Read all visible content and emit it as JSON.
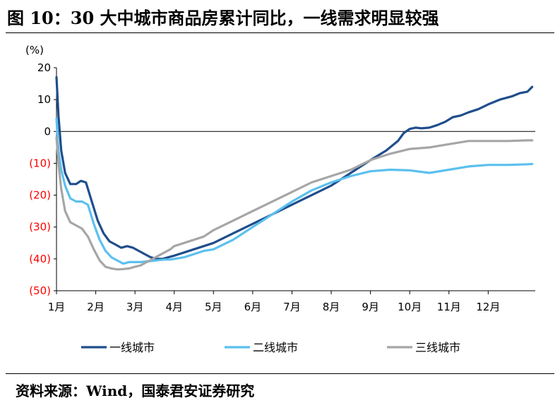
{
  "title": "图 10：30 大中城市商品房累计同比，一线需求明显较强",
  "source": "资料来源：Wind，国泰君安证券研究",
  "chart_data": {
    "type": "line",
    "title": "图 10：30 大中城市商品房累计同比，一线需求明显较强",
    "yunit": "(%)",
    "ylim": [
      -50,
      20
    ],
    "yticks": [
      20,
      10,
      0,
      -10,
      -20,
      -30,
      -40,
      -50
    ],
    "ytick_labels": [
      "20",
      "10",
      "0",
      "(10)",
      "(20)",
      "(30)",
      "(40)",
      "(50)"
    ],
    "ytick_colors": [
      "#000000",
      "#000000",
      "#000000",
      "#ff0000",
      "#ff0000",
      "#ff0000",
      "#ff0000",
      "#ff0000"
    ],
    "xlim": [
      0,
      12.2
    ],
    "x_tick_labels": [
      "1月",
      "2月",
      "3月",
      "4月",
      "5月",
      "6月",
      "7月",
      "8月",
      "9月",
      "10月",
      "11月",
      "12月"
    ],
    "grid": false,
    "legend_position": "bottom",
    "series": [
      {
        "name": "一线城市",
        "color": "#1f4e8c",
        "x": [
          0,
          0.05,
          0.12,
          0.22,
          0.35,
          0.5,
          0.62,
          0.75,
          0.9,
          1.05,
          1.2,
          1.35,
          1.5,
          1.65,
          1.8,
          1.95,
          2.1,
          2.25,
          2.4,
          2.55,
          2.7,
          2.85,
          3.0,
          3.25,
          3.5,
          3.75,
          4.0,
          4.5,
          5.0,
          5.5,
          6.0,
          6.5,
          7.0,
          7.5,
          8.0,
          8.4,
          8.7,
          8.85,
          9.0,
          9.15,
          9.3,
          9.5,
          9.7,
          9.9,
          10.1,
          10.3,
          10.5,
          10.75,
          11.0,
          11.3,
          11.6,
          11.8,
          12.0,
          12.12
        ],
        "y": [
          17,
          5,
          -6,
          -13,
          -16.5,
          -16.5,
          -15.5,
          -16,
          -22,
          -28,
          -32,
          -34.5,
          -35.5,
          -36.5,
          -36,
          -36.5,
          -37.5,
          -38.5,
          -39.5,
          -40,
          -40,
          -39.5,
          -39,
          -38,
          -37,
          -36,
          -35,
          -32,
          -29,
          -26,
          -23,
          -20,
          -17,
          -13,
          -9,
          -6,
          -3,
          -0.5,
          0.8,
          1.2,
          1,
          1.2,
          2,
          3,
          4.5,
          5,
          6,
          7,
          8.5,
          10,
          11,
          12,
          12.5,
          14
        ]
      },
      {
        "name": "二线城市",
        "color": "#5bc0ee",
        "x": [
          0,
          0.05,
          0.12,
          0.22,
          0.35,
          0.5,
          0.65,
          0.8,
          0.95,
          1.1,
          1.25,
          1.4,
          1.55,
          1.7,
          1.85,
          2.0,
          2.15,
          2.3,
          2.45,
          2.6,
          2.75,
          2.9,
          3.0,
          3.25,
          3.5,
          3.75,
          4.0,
          4.5,
          5.0,
          5.5,
          6.0,
          6.5,
          7.0,
          7.5,
          8.0,
          8.5,
          9.0,
          9.5,
          10.0,
          10.5,
          11.0,
          11.5,
          12.0,
          12.12
        ],
        "y": [
          4,
          -6,
          -12,
          -17,
          -21,
          -22,
          -22,
          -23,
          -29,
          -34,
          -37.5,
          -39.5,
          -40.5,
          -41.5,
          -41,
          -41,
          -41,
          -40.8,
          -40.6,
          -40.4,
          -40.2,
          -40.2,
          -40,
          -39.5,
          -38.5,
          -37.5,
          -37,
          -34,
          -30,
          -26,
          -22,
          -18.5,
          -16,
          -14,
          -12.5,
          -12,
          -12.2,
          -13,
          -12,
          -11,
          -10.5,
          -10.5,
          -10.3,
          -10.2
        ]
      },
      {
        "name": "三线城市",
        "color": "#a6a6a6",
        "x": [
          0,
          0.05,
          0.12,
          0.22,
          0.35,
          0.5,
          0.65,
          0.8,
          0.95,
          1.1,
          1.25,
          1.4,
          1.55,
          1.7,
          1.85,
          2.0,
          2.15,
          2.3,
          2.45,
          2.6,
          2.75,
          2.9,
          3.0,
          3.25,
          3.5,
          3.75,
          4.0,
          4.5,
          5.0,
          5.5,
          6.0,
          6.5,
          7.0,
          7.5,
          8.0,
          8.5,
          9.0,
          9.5,
          10.0,
          10.5,
          11.0,
          11.5,
          12.0,
          12.12
        ],
        "y": [
          -2,
          -10,
          -18,
          -25,
          -28.5,
          -29.5,
          -30.5,
          -33,
          -37,
          -40.5,
          -42.5,
          -43,
          -43.3,
          -43.2,
          -43,
          -42.5,
          -42,
          -41,
          -40,
          -39,
          -38,
          -37,
          -36,
          -35,
          -34,
          -33,
          -31,
          -28,
          -25,
          -22,
          -19,
          -16,
          -14,
          -12,
          -9,
          -7,
          -5.5,
          -5,
          -4,
          -3,
          -3,
          -3,
          -2.8,
          -2.8
        ]
      }
    ]
  }
}
